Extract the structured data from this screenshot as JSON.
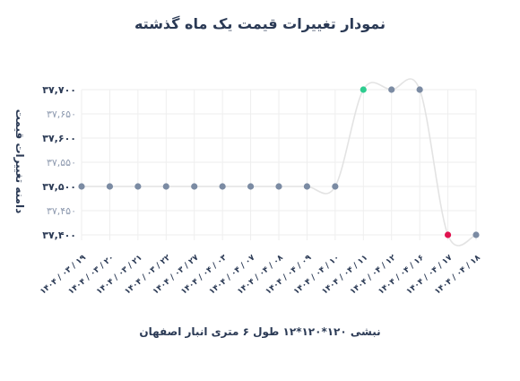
{
  "chart_data": {
    "type": "line",
    "title": "نمودار تغییرات قیمت یک ماه گذشته",
    "ylabel": "دامنه تغییرات قیمت",
    "xlabel": "نبشی ۱۲۰*۱۲۰*۱۲ طول ۶ متری انبار اصفهان",
    "ylim": [
      37400,
      37700
    ],
    "yticks": [
      37400,
      37450,
      37500,
      37550,
      37600,
      37650,
      37700
    ],
    "ytick_labels": [
      "۳۷,۴۰۰",
      "۳۷,۴۵۰",
      "۳۷,۵۰۰",
      "۳۷,۵۵۰",
      "۳۷,۶۰۰",
      "۳۷,۶۵۰",
      "۳۷,۷۰۰"
    ],
    "categories": [
      "۱۴۰۴ / ۰۳ / ۱۹",
      "۱۴۰۴ / ۰۳ / ۲۰",
      "۱۴۰۴ / ۰۳ / ۲۱",
      "۱۴۰۴ / ۰۳ / ۲۲",
      "۱۴۰۴ / ۰۳ / ۲۷",
      "۱۴۰۴ / ۰۴ / ۰۳",
      "۱۴۰۴ / ۰۴ / ۰۷",
      "۱۴۰۴ / ۰۴ / ۰۸",
      "۱۴۰۴ / ۰۴ / ۰۹",
      "۱۴۰۴ / ۰۴ / ۱۰",
      "۱۴۰۴ / ۰۴ / ۱۱",
      "۱۴۰۴ / ۰۴ / ۱۲",
      "۱۴۰۴ / ۰۴ / ۱۶",
      "۱۴۰۴ / ۰۴ / ۱۷",
      "۱۴۰۴ / ۰۴ / ۱۸"
    ],
    "values": [
      37500,
      37500,
      37500,
      37500,
      37500,
      37500,
      37500,
      37500,
      37500,
      37500,
      37700,
      37700,
      37700,
      37400,
      37400
    ],
    "highlight": {
      "max_index": 10,
      "min_index": 13
    },
    "grid": true,
    "colors": {
      "line": "#e3e3e3",
      "point": "#7b8ba3",
      "max_point": "#2ecc8f",
      "min_point": "#e0124f",
      "grid": "#eeeeee",
      "text_dark": "#2b3a55",
      "text_light": "#8f9bb0"
    }
  }
}
